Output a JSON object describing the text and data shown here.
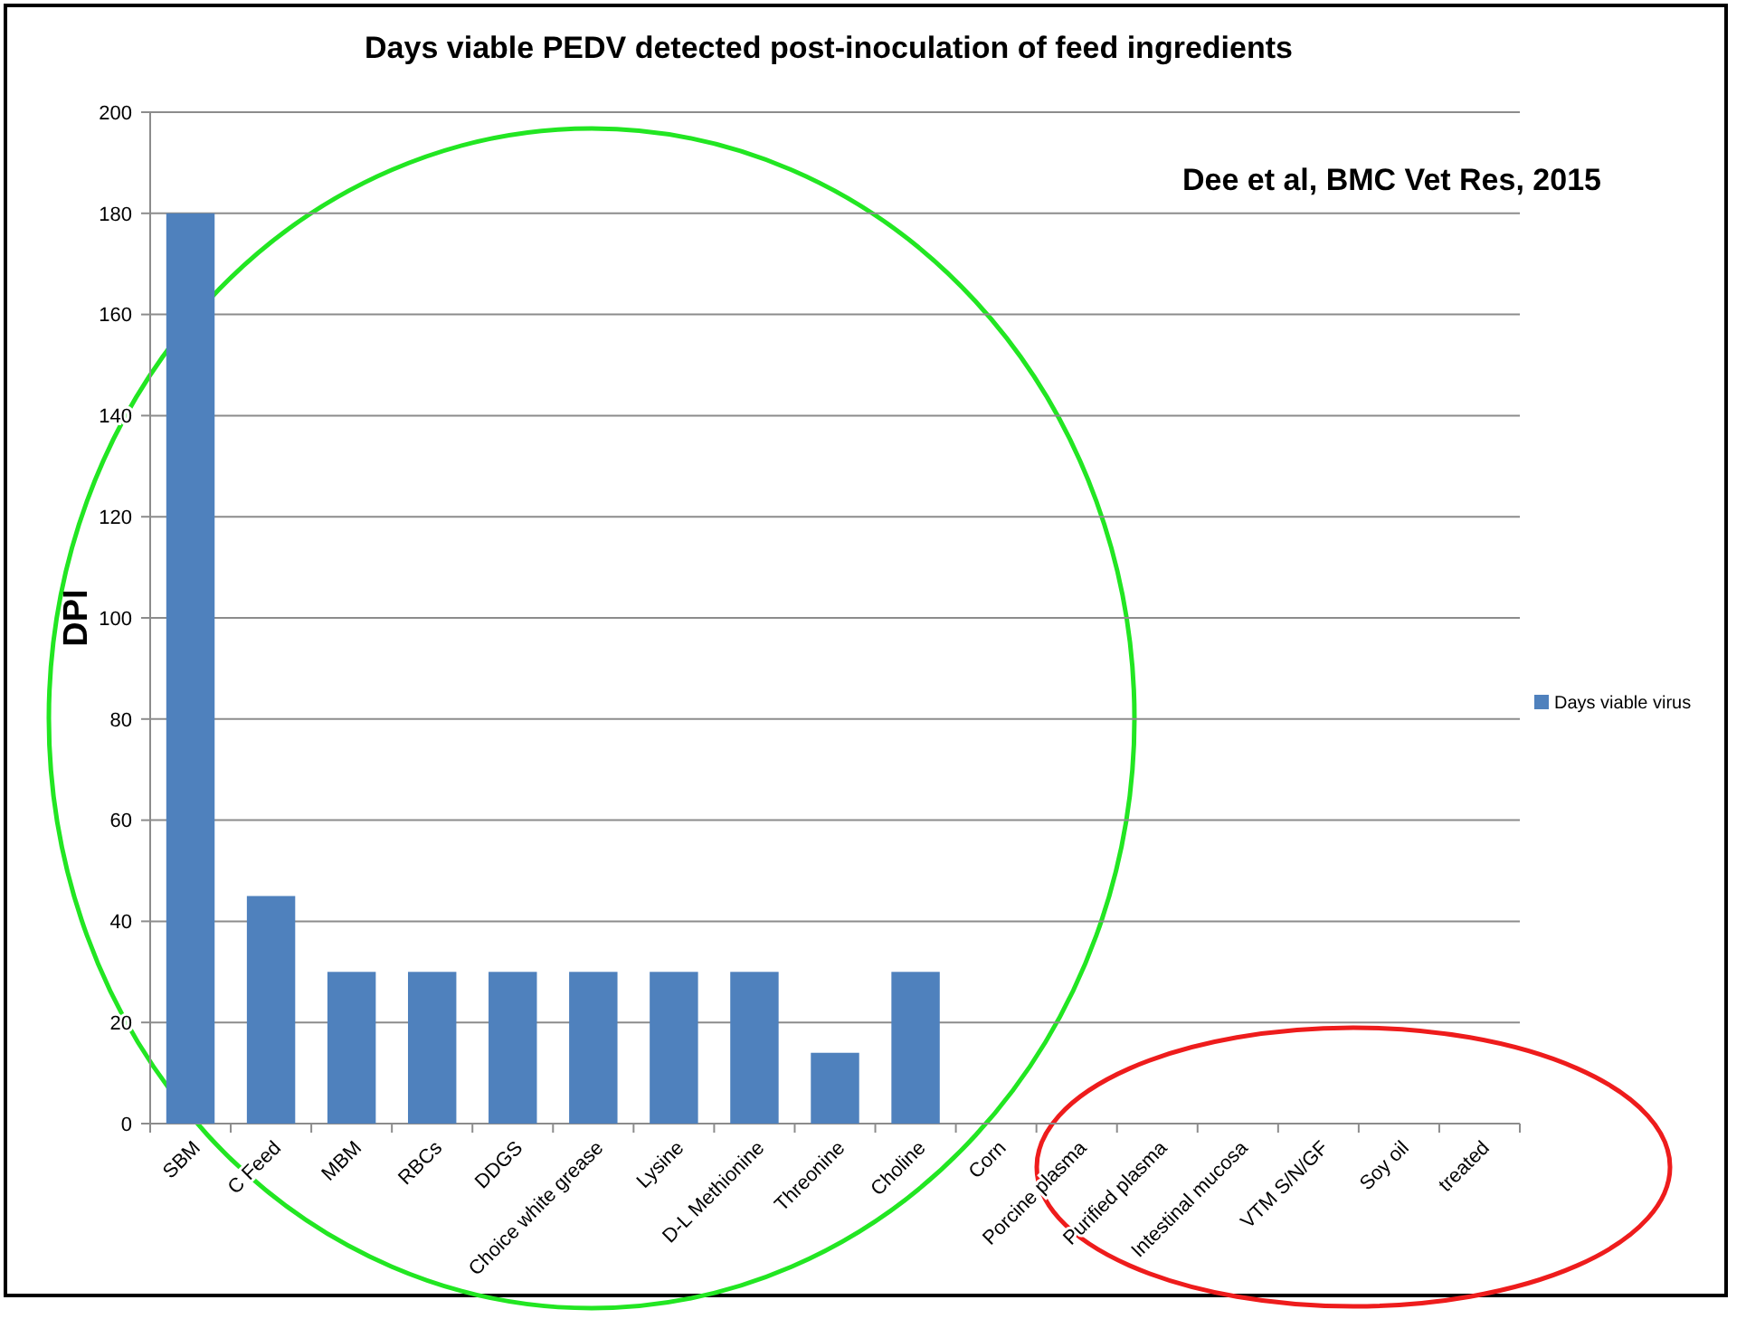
{
  "chart_data": {
    "type": "bar",
    "title": "Days viable PEDV detected post-inoculation of feed ingredients",
    "ylabel": "DPI",
    "annotations": [
      "Dee et al, BMC Vet Res, 2015"
    ],
    "categories": [
      "SBM",
      "C Feed",
      "MBM",
      "RBCs",
      "DDGS",
      "Choice white grease",
      "Lysine",
      "D-L Methionine",
      "Threonine",
      "Choline",
      "Corn",
      "Porcine plasma",
      "Purified plasma",
      "Intestinal mucosa",
      "VTM S/N/GF",
      "Soy oil",
      "treated"
    ],
    "series": [
      {
        "name": "Days viable virus",
        "color": "#4f81bd",
        "values": [
          180,
          45,
          30,
          30,
          30,
          30,
          30,
          30,
          14,
          30,
          0,
          0,
          0,
          0,
          0,
          0,
          0
        ]
      }
    ],
    "ylim": [
      0,
      200
    ],
    "yticks": [
      0,
      20,
      40,
      60,
      80,
      100,
      120,
      140,
      160,
      180,
      200
    ],
    "grid": "y",
    "legend": "right"
  }
}
